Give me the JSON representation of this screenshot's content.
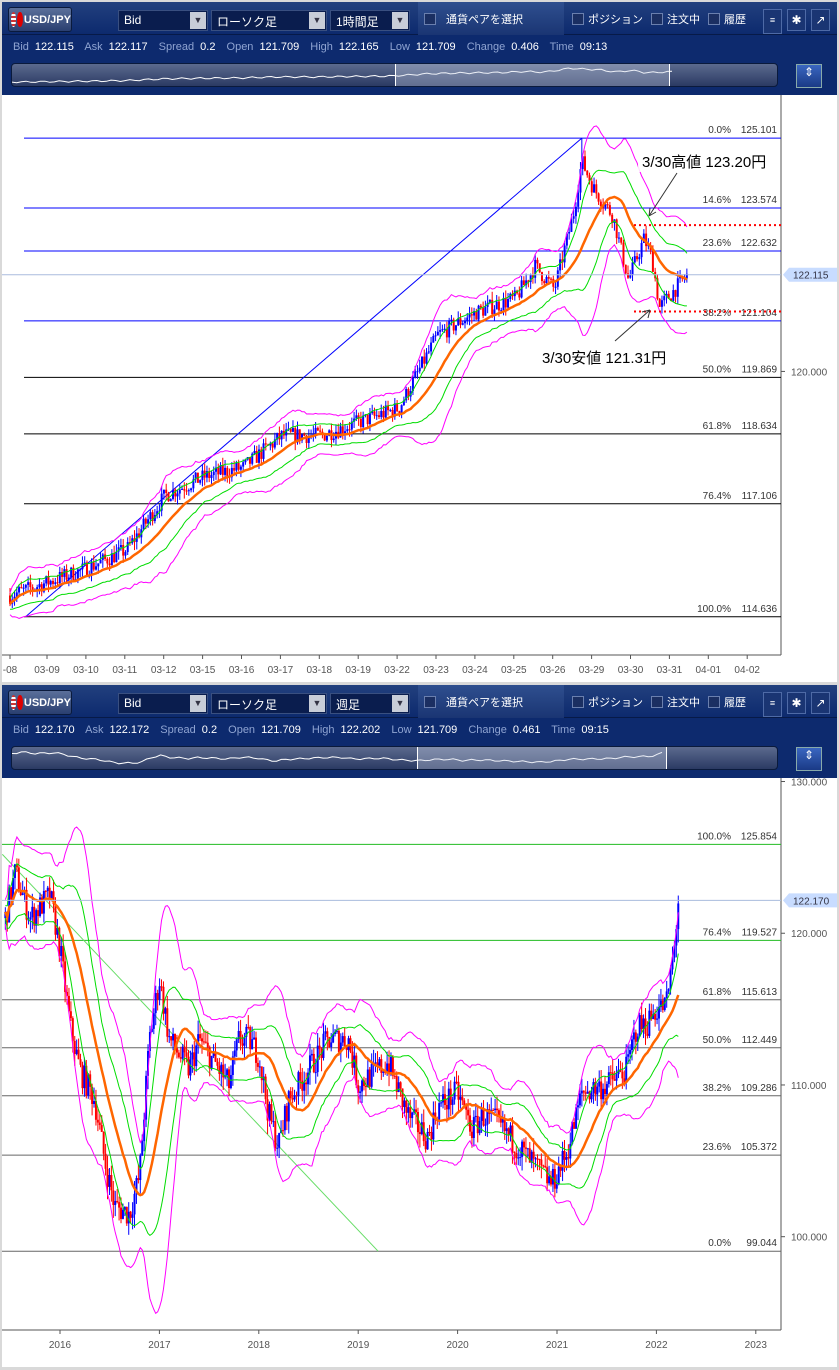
{
  "panels": [
    {
      "toolbar": {
        "pair": "USD/JPY",
        "price_type": "Bid",
        "chart_type": "ローソク足",
        "timeframe": "1時間足",
        "select_pair": "通貨ペアを選択",
        "positions": "ポジション",
        "orders": "注文中",
        "history": "履歴"
      },
      "quote": {
        "bid_label": "Bid",
        "bid": "122.115",
        "ask_label": "Ask",
        "ask": "122.117",
        "spread_label": "Spread",
        "spread": "0.2",
        "open_label": "Open",
        "open": "121.709",
        "high_label": "High",
        "high": "122.165",
        "low_label": "Low",
        "low": "121.709",
        "change_label": "Change",
        "change": "0.406",
        "time_label": "Time",
        "time": "09:13"
      }
    },
    {
      "toolbar": {
        "pair": "USD/JPY",
        "price_type": "Bid",
        "chart_type": "ローソク足",
        "timeframe": "週足",
        "select_pair": "通貨ペアを選択",
        "positions": "ポジション",
        "orders": "注文中",
        "history": "履歴"
      },
      "quote": {
        "bid_label": "Bid",
        "bid": "122.170",
        "ask_label": "Ask",
        "ask": "122.172",
        "spread_label": "Spread",
        "spread": "0.2",
        "open_label": "Open",
        "open": "121.709",
        "high_label": "High",
        "high": "122.202",
        "low_label": "Low",
        "low": "121.709",
        "change_label": "Change",
        "change": "0.461",
        "time_label": "Time",
        "time": "09:15"
      }
    }
  ],
  "colors": {
    "up": "#0000ff",
    "down": "#ff0000",
    "ma": "#ff6600",
    "band1": "#00dd00",
    "band2": "#ff00ff",
    "fib_top": "#0000ff",
    "fib_bottom": "#66cc66",
    "current": "#c8dcff"
  },
  "chart_data": [
    {
      "type": "candlestick",
      "timeframe": "1時間足",
      "ylim": [
        113.8,
        126.0
      ],
      "y_ticks": [
        "120.000"
      ],
      "current_price": "122.115",
      "x_ticks": [
        "-08",
        "03-09",
        "03-10",
        "03-11",
        "03-12",
        "03-15",
        "03-16",
        "03-17",
        "03-18",
        "03-19",
        "03-22",
        "03-23",
        "03-24",
        "03-25",
        "03-26",
        "03-29",
        "03-30",
        "03-31",
        "04-01",
        "04-02"
      ],
      "path": [
        [
          0,
          115.1
        ],
        [
          1,
          115.4
        ],
        [
          2,
          115.7
        ],
        [
          3,
          116.1
        ],
        [
          4,
          117.3
        ],
        [
          5,
          117.7
        ],
        [
          6,
          117.9
        ],
        [
          7,
          118.6
        ],
        [
          8,
          118.6
        ],
        [
          9,
          118.9
        ],
        [
          10,
          119.2
        ],
        [
          11,
          120.8
        ],
        [
          12,
          121.3
        ],
        [
          13,
          121.6
        ],
        [
          13.5,
          122.3
        ],
        [
          14,
          121.8
        ],
        [
          14.5,
          123.5
        ],
        [
          14.7,
          124.6
        ],
        [
          15,
          124.0
        ],
        [
          15.5,
          123.4
        ],
        [
          15.9,
          122.0
        ],
        [
          16.3,
          122.9
        ],
        [
          16.5,
          122.5
        ],
        [
          16.7,
          121.4
        ],
        [
          17,
          121.7
        ],
        [
          17.4,
          122.1
        ]
      ],
      "fibonacci": [
        {
          "label": "0.0%",
          "value": "125.101"
        },
        {
          "label": "14.6%",
          "value": "123.574"
        },
        {
          "label": "23.6%",
          "value": "122.632"
        },
        {
          "label": "38.2%",
          "value": "121.104"
        },
        {
          "label": "50.0%",
          "value": "119.869"
        },
        {
          "label": "61.8%",
          "value": "118.634"
        },
        {
          "label": "76.4%",
          "value": "117.106"
        },
        {
          "label": "100.0%",
          "value": "114.636"
        }
      ],
      "trendline": [
        [
          0.4,
          114.636
        ],
        [
          14.7,
          125.101
        ]
      ],
      "annotations": [
        {
          "text": "3/30高値 123.20円",
          "price": 123.2
        },
        {
          "text": "3/30安値 121.31円",
          "price": 121.31
        }
      ]
    },
    {
      "type": "candlestick",
      "timeframe": "週足",
      "ylim": [
        93.85,
        130.1
      ],
      "y_ticks": [
        "130.000",
        "120.000",
        "110.000",
        "100.000"
      ],
      "current_price": "122.170",
      "x_ticks": [
        "2016",
        "2017",
        "2018",
        "2019",
        "2020",
        "2021",
        "2022",
        "2023"
      ],
      "path": [
        [
          2015.45,
          121
        ],
        [
          2015.55,
          124
        ],
        [
          2015.7,
          121
        ],
        [
          2015.9,
          122.5
        ],
        [
          2016.0,
          119
        ],
        [
          2016.1,
          114
        ],
        [
          2016.2,
          111
        ],
        [
          2016.35,
          109
        ],
        [
          2016.45,
          105
        ],
        [
          2016.55,
          102
        ],
        [
          2016.7,
          101.5
        ],
        [
          2016.8,
          104
        ],
        [
          2016.9,
          113
        ],
        [
          2017.0,
          117
        ],
        [
          2017.1,
          113
        ],
        [
          2017.2,
          112
        ],
        [
          2017.3,
          111
        ],
        [
          2017.4,
          113
        ],
        [
          2017.5,
          112
        ],
        [
          2017.7,
          110
        ],
        [
          2017.8,
          113
        ],
        [
          2017.9,
          113
        ],
        [
          2018.0,
          112
        ],
        [
          2018.1,
          108
        ],
        [
          2018.2,
          106
        ],
        [
          2018.3,
          109
        ],
        [
          2018.4,
          110
        ],
        [
          2018.5,
          111
        ],
        [
          2018.7,
          113
        ],
        [
          2018.9,
          113
        ],
        [
          2019.0,
          110
        ],
        [
          2019.1,
          110.5
        ],
        [
          2019.3,
          111.5
        ],
        [
          2019.5,
          108
        ],
        [
          2019.7,
          106.5
        ],
        [
          2019.8,
          108.5
        ],
        [
          2019.9,
          109
        ],
        [
          2020.0,
          109.5
        ],
        [
          2020.15,
          107
        ],
        [
          2020.25,
          108
        ],
        [
          2020.4,
          107.5
        ],
        [
          2020.6,
          106
        ],
        [
          2020.8,
          104.5
        ],
        [
          2020.95,
          103.5
        ],
        [
          2021.1,
          105.5
        ],
        [
          2021.25,
          109.5
        ],
        [
          2021.5,
          110
        ],
        [
          2021.7,
          111
        ],
        [
          2021.8,
          113.8
        ],
        [
          2021.9,
          114
        ],
        [
          2022.0,
          115
        ],
        [
          2022.1,
          115.3
        ],
        [
          2022.18,
          119
        ],
        [
          2022.22,
          122.2
        ]
      ],
      "fibonacci": [
        {
          "label": "100.0%",
          "value": "125.854"
        },
        {
          "label": "76.4%",
          "value": "119.527"
        },
        {
          "label": "61.8%",
          "value": "115.613"
        },
        {
          "label": "50.0%",
          "value": "112.449"
        },
        {
          "label": "38.2%",
          "value": "109.286"
        },
        {
          "label": "23.6%",
          "value": "105.372"
        },
        {
          "label": "0.0%",
          "value": "99.044"
        }
      ],
      "trendline": [
        [
          2015.42,
          125.2
        ],
        [
          2019.2,
          99.044
        ]
      ]
    }
  ]
}
